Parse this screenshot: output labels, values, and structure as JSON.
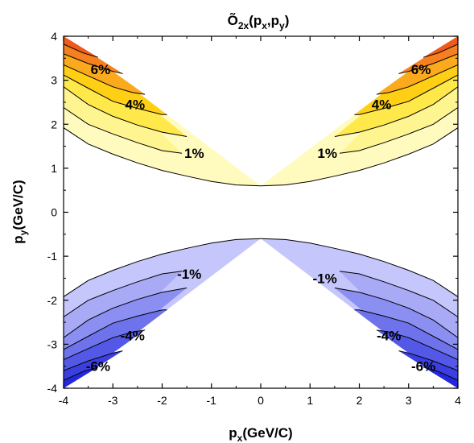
{
  "chart_data": {
    "type": "contour",
    "title": "Õ2x(px,py)",
    "title_parts": {
      "main": "Õ",
      "sub1": "2x",
      "open": "(p",
      "sub2": "x",
      "comma": ",p",
      "sub3": "y",
      "close": ")"
    },
    "xlabel_parts": {
      "main": "p",
      "sub": "x",
      "rest": "(GeV/C)"
    },
    "ylabel_parts": {
      "main": "p",
      "sub": "y",
      "rest": "(GeV/C)"
    },
    "xlim": [
      -4,
      4
    ],
    "ylim": [
      -4,
      4
    ],
    "x_ticks": [
      "-4",
      "-3",
      "-2",
      "-1",
      "0",
      "1",
      "2",
      "3",
      "4"
    ],
    "y_ticks": [
      "-4",
      "-3",
      "-2",
      "-1",
      "0",
      "1",
      "2",
      "3",
      "4"
    ],
    "fill_colors": {
      "pos": [
        "#fffbbf",
        "#fff590",
        "#ffe84a",
        "#fecf14",
        "#fbaa1e",
        "#f5801f",
        "#ee5a1c",
        "#e6181b"
      ],
      "neg": [
        "#c5c6fb",
        "#a8aaf6",
        "#8b8ff2",
        "#6e73ec",
        "#5458e6",
        "#3b3fe0",
        "#2428dc",
        "#0b12d8"
      ]
    },
    "levels_quadrant": [
      {
        "level": "1%",
        "pts": [
          [
            4,
            1.92
          ],
          [
            3.5,
            1.55
          ],
          [
            3.0,
            1.32
          ],
          [
            2.5,
            1.12
          ],
          [
            2.0,
            0.95
          ],
          [
            1.5,
            0.82
          ],
          [
            1.0,
            0.7
          ],
          [
            0.5,
            0.62
          ],
          [
            0,
            0.6
          ]
        ]
      },
      {
        "level": "2%",
        "pts": [
          [
            4,
            2.38
          ],
          [
            3.5,
            2.0
          ],
          [
            3.0,
            1.78
          ],
          [
            2.5,
            1.58
          ],
          [
            2.0,
            1.4
          ],
          [
            1.6,
            1.34
          ]
        ]
      },
      {
        "level": "3%",
        "pts": [
          [
            4,
            2.85
          ],
          [
            3.5,
            2.45
          ],
          [
            3.0,
            2.18
          ],
          [
            2.5,
            1.98
          ],
          [
            2.0,
            1.82
          ],
          [
            1.5,
            1.72
          ]
        ]
      },
      {
        "level": "4%",
        "pts": [
          [
            4,
            3.12
          ],
          [
            3.5,
            2.82
          ],
          [
            3.0,
            2.52
          ],
          [
            2.5,
            2.36
          ],
          [
            2.0,
            2.22
          ],
          [
            1.9,
            2.22
          ]
        ]
      },
      {
        "level": "5%",
        "pts": [
          [
            4,
            3.35
          ],
          [
            3.5,
            3.1
          ],
          [
            3.0,
            2.85
          ],
          [
            2.6,
            2.72
          ],
          [
            2.35,
            2.68
          ]
        ]
      },
      {
        "level": "6%",
        "pts": [
          [
            4,
            3.6
          ],
          [
            3.5,
            3.38
          ],
          [
            3.0,
            3.2
          ],
          [
            2.8,
            3.15
          ]
        ]
      },
      {
        "level": "7%",
        "pts": [
          [
            4,
            3.82
          ],
          [
            3.6,
            3.62
          ],
          [
            3.3,
            3.52
          ]
        ]
      }
    ],
    "contour_labels": [
      {
        "text": "6%",
        "x": -3.25,
        "y": 3.25
      },
      {
        "text": "4%",
        "x": -2.55,
        "y": 2.45
      },
      {
        "text": "1%",
        "x": -1.35,
        "y": 1.35
      },
      {
        "text": "6%",
        "x": 3.25,
        "y": 3.25
      },
      {
        "text": "4%",
        "x": 2.45,
        "y": 2.45
      },
      {
        "text": "1%",
        "x": 1.35,
        "y": 1.35
      },
      {
        "text": "-1%",
        "x": -1.45,
        "y": -1.4
      },
      {
        "text": "-4%",
        "x": -2.6,
        "y": -2.8
      },
      {
        "text": "-6%",
        "x": -3.3,
        "y": -3.5
      },
      {
        "text": "-1%",
        "x": 1.3,
        "y": -1.5
      },
      {
        "text": "-4%",
        "x": 2.6,
        "y": -2.8
      },
      {
        "text": "-6%",
        "x": 3.3,
        "y": -3.5
      }
    ]
  }
}
